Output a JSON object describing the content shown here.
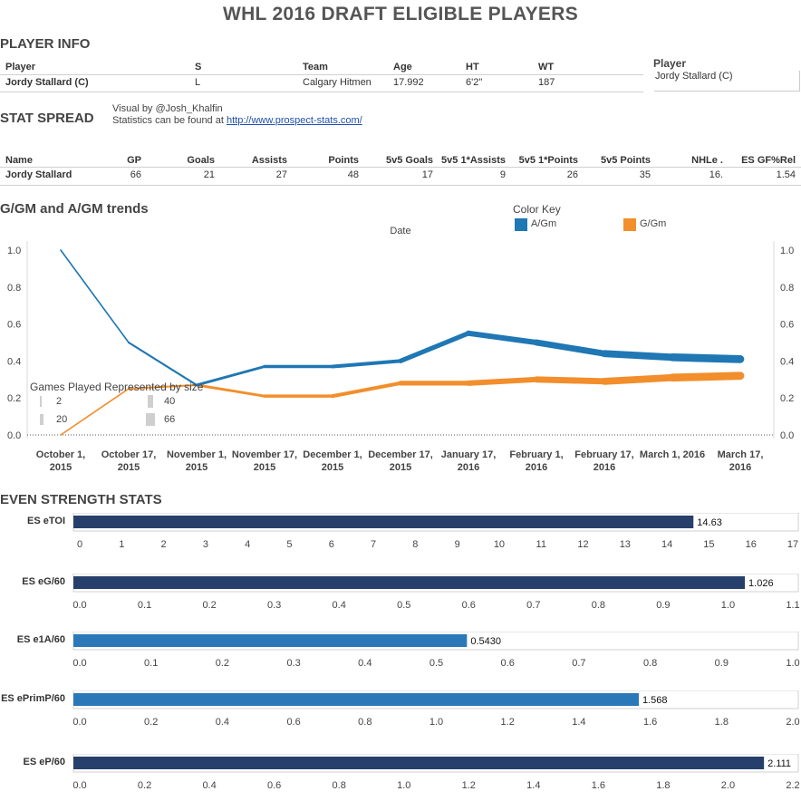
{
  "title": "WHL 2016 DRAFT ELIGIBLE PLAYERS",
  "player_info": {
    "section_title": "PLAYER INFO",
    "headers": [
      "Player",
      "S",
      "Team",
      "Age",
      "HT",
      "WT"
    ],
    "row": [
      "Jordy Stallard (C)",
      "L",
      "Calgary Hitmen",
      "17.992",
      "6'2\"",
      "187"
    ],
    "filter_label": "Player",
    "filter_value": "Jordy Stallard (C)"
  },
  "stat_spread": {
    "section_title": "STAT SPREAD",
    "credit_line1": "Visual by @Josh_Khalfin",
    "credit_line2": "Statistics can be found at ",
    "credit_link": "http://www.prospect-stats.com/",
    "headers": [
      "Name",
      "GP",
      "Goals",
      "Assists",
      "Points",
      "5v5 Goals",
      "5v5 1*Assists",
      "5v5 1*Points",
      "5v5 Points",
      "NHLe .",
      "ES GF%Rel"
    ],
    "row": [
      "Jordy Stallard",
      "66",
      "21",
      "27",
      "48",
      "17",
      "9",
      "26",
      "35",
      "16.",
      "1.54"
    ]
  },
  "trends": {
    "section_title": "G/GM and A/GM trends",
    "color_key_title": "Color Key",
    "size_legend_title": "Games Played Represented by size",
    "size_legend_items": [
      "2",
      "40",
      "20",
      "66"
    ],
    "colors": {
      "agm": "#1f77b4",
      "ggm": "#f28e2b"
    }
  },
  "chart_data": [
    {
      "type": "line",
      "title": "",
      "xlabel": "Date",
      "ylabel": "",
      "ylim": [
        0,
        1.0
      ],
      "y_ticks": [
        "0.0",
        "0.2",
        "0.4",
        "0.6",
        "0.8",
        "1.0"
      ],
      "x_ticks": [
        [
          "October 1,",
          "2015"
        ],
        [
          "October 17,",
          "2015"
        ],
        [
          "November 1,",
          "2015"
        ],
        [
          "November 17,",
          "2015"
        ],
        [
          "December 1,",
          "2015"
        ],
        [
          "December 17,",
          "2015"
        ],
        [
          "January 17,",
          "2016"
        ],
        [
          "February 1,",
          "2016"
        ],
        [
          "February 17,",
          "2016"
        ],
        [
          "March 1, 2016",
          ""
        ],
        [
          "March 17,",
          "2016"
        ]
      ],
      "x": [
        "Oct 1, 2015",
        "Oct 17, 2015",
        "Nov 1, 2015",
        "Nov 17, 2015",
        "Dec 1, 2015",
        "Dec 17, 2015",
        "Jan 17, 2016",
        "Feb 1, 2016",
        "Feb 17, 2016",
        "Mar 1, 2016",
        "Mar 17, 2016"
      ],
      "legend_position": "top-right",
      "series": [
        {
          "name": "A/Gm",
          "values": [
            1.0,
            0.5,
            0.27,
            0.37,
            0.37,
            0.4,
            0.55,
            0.5,
            0.44,
            0.42,
            0.41
          ],
          "games_played": [
            1,
            4,
            8,
            15,
            20,
            25,
            35,
            42,
            50,
            58,
            66
          ]
        },
        {
          "name": "G/Gm",
          "values": [
            0.0,
            0.25,
            0.27,
            0.21,
            0.21,
            0.28,
            0.28,
            0.3,
            0.29,
            0.31,
            0.32
          ],
          "games_played": [
            1,
            4,
            8,
            15,
            20,
            25,
            35,
            42,
            50,
            58,
            66
          ]
        }
      ]
    },
    {
      "type": "bar",
      "label": "ES eTOI",
      "value": 14.63,
      "value_label": "14.63",
      "color": "#27406b",
      "xlim": [
        0,
        17
      ],
      "ticks": [
        "0",
        "1",
        "2",
        "3",
        "4",
        "5",
        "6",
        "7",
        "8",
        "9",
        "10",
        "11",
        "12",
        "13",
        "14",
        "15",
        "16",
        "17"
      ]
    },
    {
      "type": "bar",
      "label": "ES eG/60",
      "value": 1.026,
      "value_label": "1.026",
      "color": "#27406b",
      "xlim": [
        0,
        1.1
      ],
      "ticks": [
        "0.0",
        "0.1",
        "0.2",
        "0.3",
        "0.4",
        "0.5",
        "0.6",
        "0.7",
        "0.8",
        "0.9",
        "1.0",
        "1.1"
      ]
    },
    {
      "type": "bar",
      "label": "ES e1A/60",
      "value": 0.543,
      "value_label": "0.5430",
      "color": "#2b78b9",
      "xlim": [
        0,
        1.0
      ],
      "ticks": [
        "0.0",
        "0.1",
        "0.2",
        "0.3",
        "0.4",
        "0.5",
        "0.6",
        "0.7",
        "0.8",
        "0.9",
        "1.0"
      ]
    },
    {
      "type": "bar",
      "label": "ES ePrimP/60",
      "value": 1.568,
      "value_label": "1.568",
      "color": "#2b78b9",
      "xlim": [
        0,
        2.0
      ],
      "ticks": [
        "0.0",
        "0.2",
        "0.4",
        "0.6",
        "0.8",
        "1.0",
        "1.2",
        "1.4",
        "1.6",
        "1.8",
        "2.0"
      ]
    },
    {
      "type": "bar",
      "label": "ES eP/60",
      "value": 2.111,
      "value_label": "2.111",
      "color": "#27406b",
      "xlim": [
        0,
        2.2
      ],
      "ticks": [
        "0.0",
        "0.2",
        "0.4",
        "0.6",
        "0.8",
        "1.0",
        "1.2",
        "1.4",
        "1.6",
        "1.8",
        "2.0",
        "2.2"
      ]
    }
  ],
  "even_strength": {
    "section_title": "EVEN STRENGTH STATS"
  }
}
